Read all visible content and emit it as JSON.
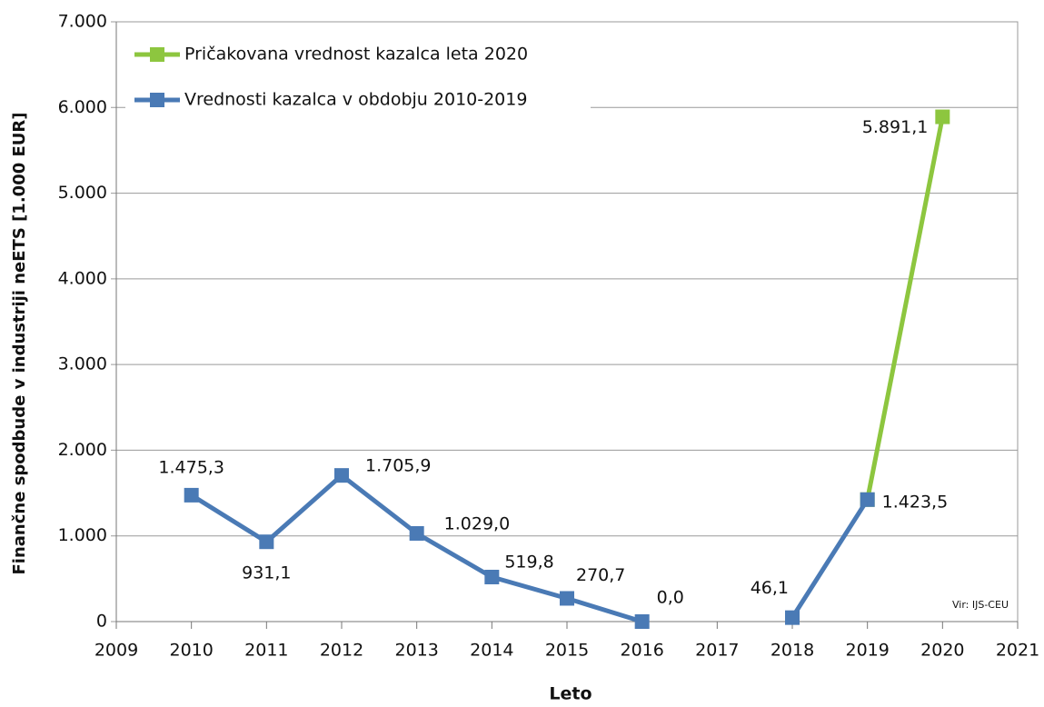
{
  "chart_data": {
    "type": "line",
    "y_label": "Finančne spodbude v industriji neETS [1.000 EUR]",
    "x_label": "Leto",
    "source": "Vir: IJS-CEU",
    "x": [
      2010,
      2011,
      2012,
      2013,
      2014,
      2015,
      2016,
      2017,
      2018,
      2019,
      2020
    ],
    "series": [
      {
        "name": "Pričakovana vrednost kazalca leta 2020",
        "color": "#8dc63f",
        "values": [
          null,
          null,
          null,
          null,
          null,
          null,
          null,
          null,
          null,
          1423.5,
          5891.1
        ],
        "value_labels": [
          null,
          null,
          null,
          null,
          null,
          null,
          null,
          null,
          null,
          null,
          "5.891,1"
        ]
      },
      {
        "name": "Vrednosti kazalca v obdobju 2010-2019",
        "color": "#4a7ab5",
        "values": [
          1475.3,
          931.1,
          1705.9,
          1029.0,
          519.8,
          270.7,
          0.0,
          null,
          46.1,
          1423.5,
          null
        ],
        "value_labels": [
          "1.475,3",
          "931,1",
          "1.705,9",
          "1.029,0",
          "519,8",
          "270,7",
          "0,0",
          null,
          "46,1",
          "1.423,5",
          null
        ]
      }
    ],
    "xlim": [
      2009,
      2021
    ],
    "xticks": [
      2009,
      2010,
      2011,
      2012,
      2013,
      2014,
      2015,
      2016,
      2017,
      2018,
      2019,
      2020,
      2021
    ],
    "ylim": [
      0,
      7000
    ],
    "yticks": [
      0,
      {
        "value": 1000,
        "label": "1.000"
      },
      {
        "value": 2000,
        "label": "2.000"
      },
      {
        "value": 3000,
        "label": "3.000"
      },
      {
        "value": 4000,
        "label": "4.000"
      },
      {
        "value": 5000,
        "label": "5.000"
      },
      {
        "value": 6000,
        "label": "6.000"
      },
      {
        "value": 7000,
        "label": "7.000"
      }
    ],
    "grid": true,
    "legend": "top-left"
  }
}
